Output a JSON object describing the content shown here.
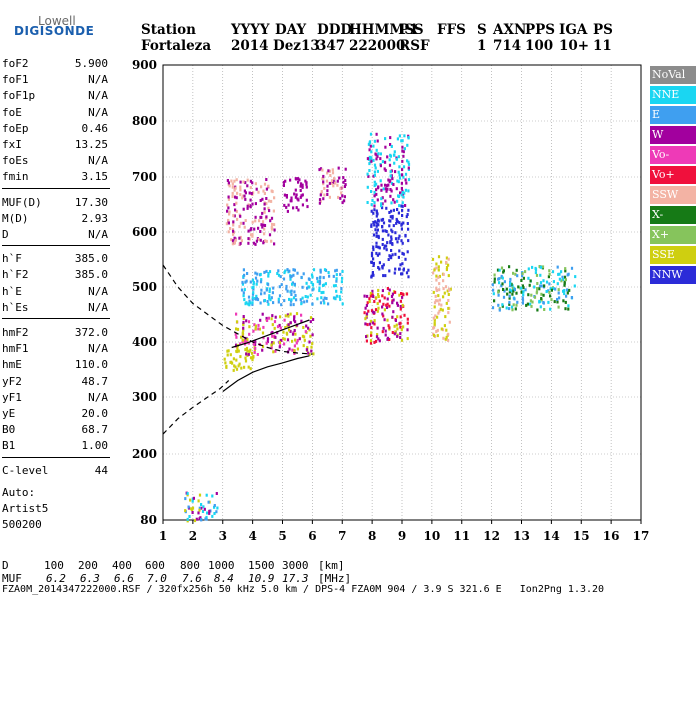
{
  "logo": {
    "line1": "Lowell",
    "line2": "DIGISONDE"
  },
  "header": {
    "labels": [
      "Station",
      "YYYY",
      "DAY",
      "DDD",
      "HHMMSS",
      "P1",
      "FFS",
      "S",
      "AXN",
      "PPS",
      "IGA",
      "PS"
    ],
    "values": [
      "Fortaleza",
      "2014",
      "Dez13",
      "347",
      "222000",
      "RSF",
      "1",
      "714",
      "100",
      "10+",
      "11"
    ]
  },
  "params": [
    {
      "key": "foF2",
      "value": "5.900"
    },
    {
      "key": "foF1",
      "value": "N/A"
    },
    {
      "key": "foF1p",
      "value": "N/A"
    },
    {
      "key": "foE",
      "value": "N/A"
    },
    {
      "key": "foEp",
      "value": "0.46"
    },
    {
      "key": "fxI",
      "value": "13.25"
    },
    {
      "key": "foEs",
      "value": "N/A"
    },
    {
      "key": "fmin",
      "value": "3.15"
    },
    {
      "key": "MUF(D)",
      "value": "17.30"
    },
    {
      "key": "M(D)",
      "value": "2.93"
    },
    {
      "key": "D",
      "value": "N/A"
    },
    {
      "key": "h`F",
      "value": "385.0"
    },
    {
      "key": "h`F2",
      "value": "385.0"
    },
    {
      "key": "h`E",
      "value": "N/A"
    },
    {
      "key": "h`Es",
      "value": "N/A"
    },
    {
      "key": "hmF2",
      "value": "372.0"
    },
    {
      "key": "hmF1",
      "value": "N/A"
    },
    {
      "key": "hmE",
      "value": "110.0"
    },
    {
      "key": "yF2",
      "value": "48.7"
    },
    {
      "key": "yF1",
      "value": "N/A"
    },
    {
      "key": "yE",
      "value": "20.0"
    },
    {
      "key": "B0",
      "value": "68.7"
    },
    {
      "key": "B1",
      "value": "1.00"
    },
    {
      "key": "C-level",
      "value": "44"
    }
  ],
  "auto": {
    "line1": "Auto:",
    "line2": "Artist5",
    "line3": "500200"
  },
  "legend": [
    {
      "label": "NoVal",
      "color": "#8c8c8c"
    },
    {
      "label": "NNE",
      "color": "#1ad6f2"
    },
    {
      "label": "E",
      "color": "#3f9ff0"
    },
    {
      "label": "W",
      "color": "#a2009e"
    },
    {
      "label": "Vo-",
      "color": "#ee3ab7"
    },
    {
      "label": "Vo+",
      "color": "#f0103c"
    },
    {
      "label": "SSW",
      "color": "#f3b3a4"
    },
    {
      "label": "X-",
      "color": "#167a16"
    },
    {
      "label": "X+",
      "color": "#86c45c"
    },
    {
      "label": "SSE",
      "color": "#cfcf10"
    },
    {
      "label": "NNW",
      "color": "#2b2bd8"
    }
  ],
  "muf_table": {
    "d_label": "D",
    "d_values": [
      "100",
      "200",
      "400",
      "600",
      "800",
      "1000",
      "1500",
      "3000",
      "[km]"
    ],
    "muf_label": "MUF",
    "muf_values": [
      "6.2",
      "6.3",
      "6.6",
      "7.0",
      "7.6",
      "8.4",
      "10.9",
      "17.3",
      "[MHz]"
    ]
  },
  "footer": "FZA0M_2014347222000.RSF / 320fx256h 50 kHz 5.0 km / DPS-4 FZA0M 904 / 3.9 S 321.6 E   Ion2Png 1.3.20",
  "chart_data": {
    "type": "scatter",
    "xlim": [
      1,
      17
    ],
    "ylim": [
      80,
      900
    ],
    "x_ticks": [
      1,
      2,
      3,
      4,
      5,
      6,
      7,
      8,
      9,
      10,
      11,
      12,
      13,
      14,
      15,
      16,
      17
    ],
    "y_ticks": [
      80,
      200,
      300,
      400,
      500,
      600,
      700,
      800,
      900
    ],
    "grid": true,
    "legend_position": "right",
    "echo_clusters": [
      {
        "x": [
          1.7,
          2.8
        ],
        "y": [
          80,
          135
        ],
        "colors": [
          "NNE",
          "E",
          "SSE",
          "W"
        ]
      },
      {
        "x": [
          3.0,
          4.0
        ],
        "y": [
          350,
          390
        ],
        "colors": [
          "SSE"
        ]
      },
      {
        "x": [
          3.4,
          6.0
        ],
        "y": [
          380,
          455
        ],
        "colors": [
          "SSE",
          "Vo-",
          "W"
        ]
      },
      {
        "x": [
          3.6,
          7.0
        ],
        "y": [
          470,
          535
        ],
        "colors": [
          "E",
          "NNE"
        ]
      },
      {
        "x": [
          3.1,
          4.7
        ],
        "y": [
          580,
          700
        ],
        "colors": [
          "W",
          "SSW"
        ]
      },
      {
        "x": [
          5.0,
          5.8
        ],
        "y": [
          640,
          700
        ],
        "colors": [
          "W"
        ]
      },
      {
        "x": [
          6.2,
          7.1
        ],
        "y": [
          650,
          720
        ],
        "colors": [
          "W",
          "SSW"
        ]
      },
      {
        "x": [
          7.7,
          9.2
        ],
        "y": [
          400,
          500
        ],
        "colors": [
          "SSE",
          "Vo+",
          "W"
        ]
      },
      {
        "x": [
          7.9,
          9.2
        ],
        "y": [
          520,
          650
        ],
        "colors": [
          "NNW"
        ]
      },
      {
        "x": [
          7.8,
          9.2
        ],
        "y": [
          650,
          780
        ],
        "colors": [
          "W",
          "NNE"
        ]
      },
      {
        "x": [
          10.0,
          10.6
        ],
        "y": [
          405,
          560
        ],
        "colors": [
          "SSE",
          "SSW"
        ]
      },
      {
        "x": [
          12.0,
          14.8
        ],
        "y": [
          460,
          540
        ],
        "colors": [
          "NNE",
          "E",
          "X-",
          "X+"
        ]
      }
    ],
    "traces": [
      {
        "name": "",
        "style": "solid",
        "x": [
          3.0,
          3.5,
          4.0,
          4.5,
          5.0,
          5.5,
          5.9
        ],
        "y": [
          310,
          330,
          345,
          355,
          362,
          370,
          375
        ]
      },
      {
        "name": "",
        "style": "solid",
        "x": [
          3.3,
          3.8,
          4.3,
          4.8,
          5.3,
          5.9
        ],
        "y": [
          390,
          398,
          408,
          418,
          428,
          440
        ]
      },
      {
        "name": "",
        "style": "dashed",
        "x": [
          1.0,
          1.5,
          2.0,
          2.5,
          3.0,
          3.5,
          4.0,
          4.5,
          5.0,
          5.5,
          6.0
        ],
        "y": [
          540,
          500,
          470,
          450,
          430,
          415,
          400,
          390,
          383,
          380,
          378
        ]
      },
      {
        "name": "",
        "style": "dashed",
        "x": [
          1.0,
          1.5,
          2.0,
          2.5,
          2.9,
          3.2
        ],
        "y": [
          235,
          262,
          282,
          300,
          315,
          330
        ]
      }
    ]
  }
}
